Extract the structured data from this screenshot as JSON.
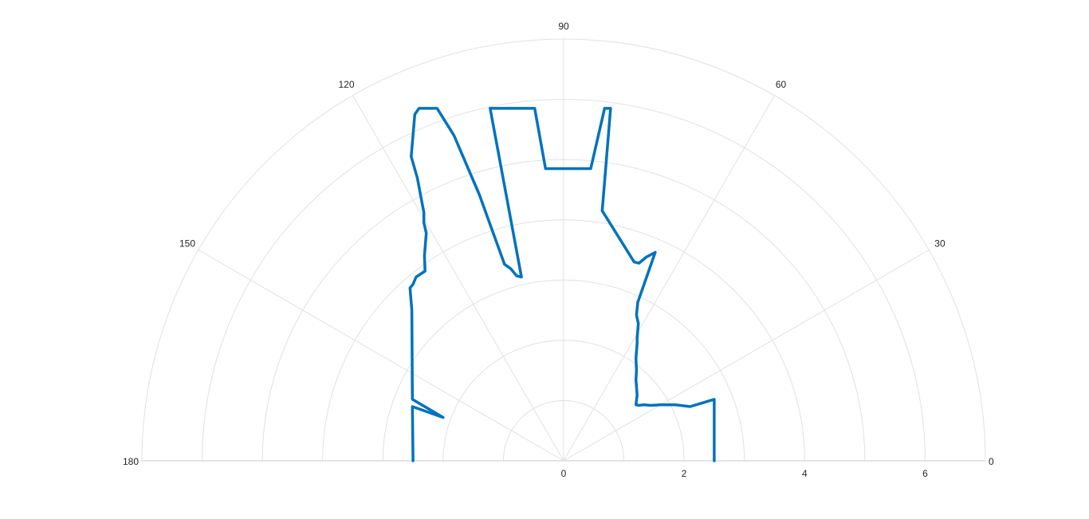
{
  "chart_data": {
    "type": "line",
    "coordinate_system": "polar",
    "theta_range_deg": [
      0,
      180
    ],
    "r_range": [
      0,
      7
    ],
    "grid": true,
    "theta_ticks": [
      "0",
      "30",
      "60",
      "90",
      "120",
      "150",
      "180"
    ],
    "r_ticks": [
      "0",
      "2",
      "4",
      "6"
    ],
    "series": [
      {
        "color": "#0072BD",
        "points": [
          [
            -2.5,
            0.0
          ],
          [
            -2.51,
            0.9
          ],
          [
            -2.0,
            0.72
          ],
          [
            -2.51,
            1.02
          ],
          [
            -2.52,
            2.5
          ],
          [
            -2.55,
            2.87
          ],
          [
            -2.5,
            2.93
          ],
          [
            -2.45,
            3.05
          ],
          [
            -2.3,
            3.15
          ],
          [
            -2.31,
            3.4
          ],
          [
            -2.28,
            3.78
          ],
          [
            -2.32,
            3.95
          ],
          [
            -2.32,
            4.12
          ],
          [
            -2.43,
            4.7
          ],
          [
            -2.53,
            5.05
          ],
          [
            -2.47,
            5.75
          ],
          [
            -2.4,
            5.85
          ],
          [
            -2.1,
            5.85
          ],
          [
            -1.82,
            5.4
          ],
          [
            -1.4,
            4.42
          ],
          [
            -0.98,
            3.26
          ],
          [
            -0.88,
            3.19
          ],
          [
            -0.78,
            3.07
          ],
          [
            -0.7,
            3.05
          ],
          [
            -1.22,
            5.85
          ],
          [
            -0.48,
            5.85
          ],
          [
            -0.3,
            4.85
          ],
          [
            0.45,
            4.85
          ],
          [
            0.68,
            5.85
          ],
          [
            0.78,
            5.85
          ],
          [
            0.64,
            4.15
          ],
          [
            1.17,
            3.3
          ],
          [
            1.25,
            3.28
          ],
          [
            1.37,
            3.38
          ],
          [
            1.52,
            3.46
          ],
          [
            1.23,
            2.63
          ],
          [
            1.21,
            2.42
          ],
          [
            1.24,
            2.28
          ],
          [
            1.22,
            2.04
          ],
          [
            1.22,
            1.95
          ],
          [
            1.2,
            1.7
          ],
          [
            1.21,
            1.5
          ],
          [
            1.2,
            1.35
          ],
          [
            1.22,
            1.09
          ],
          [
            1.2,
            0.93
          ],
          [
            1.25,
            0.92
          ],
          [
            1.33,
            0.93
          ],
          [
            1.45,
            0.92
          ],
          [
            1.6,
            0.93
          ],
          [
            1.85,
            0.93
          ],
          [
            2.1,
            0.9
          ],
          [
            2.5,
            1.02
          ],
          [
            2.5,
            0.0
          ]
        ]
      }
    ]
  }
}
